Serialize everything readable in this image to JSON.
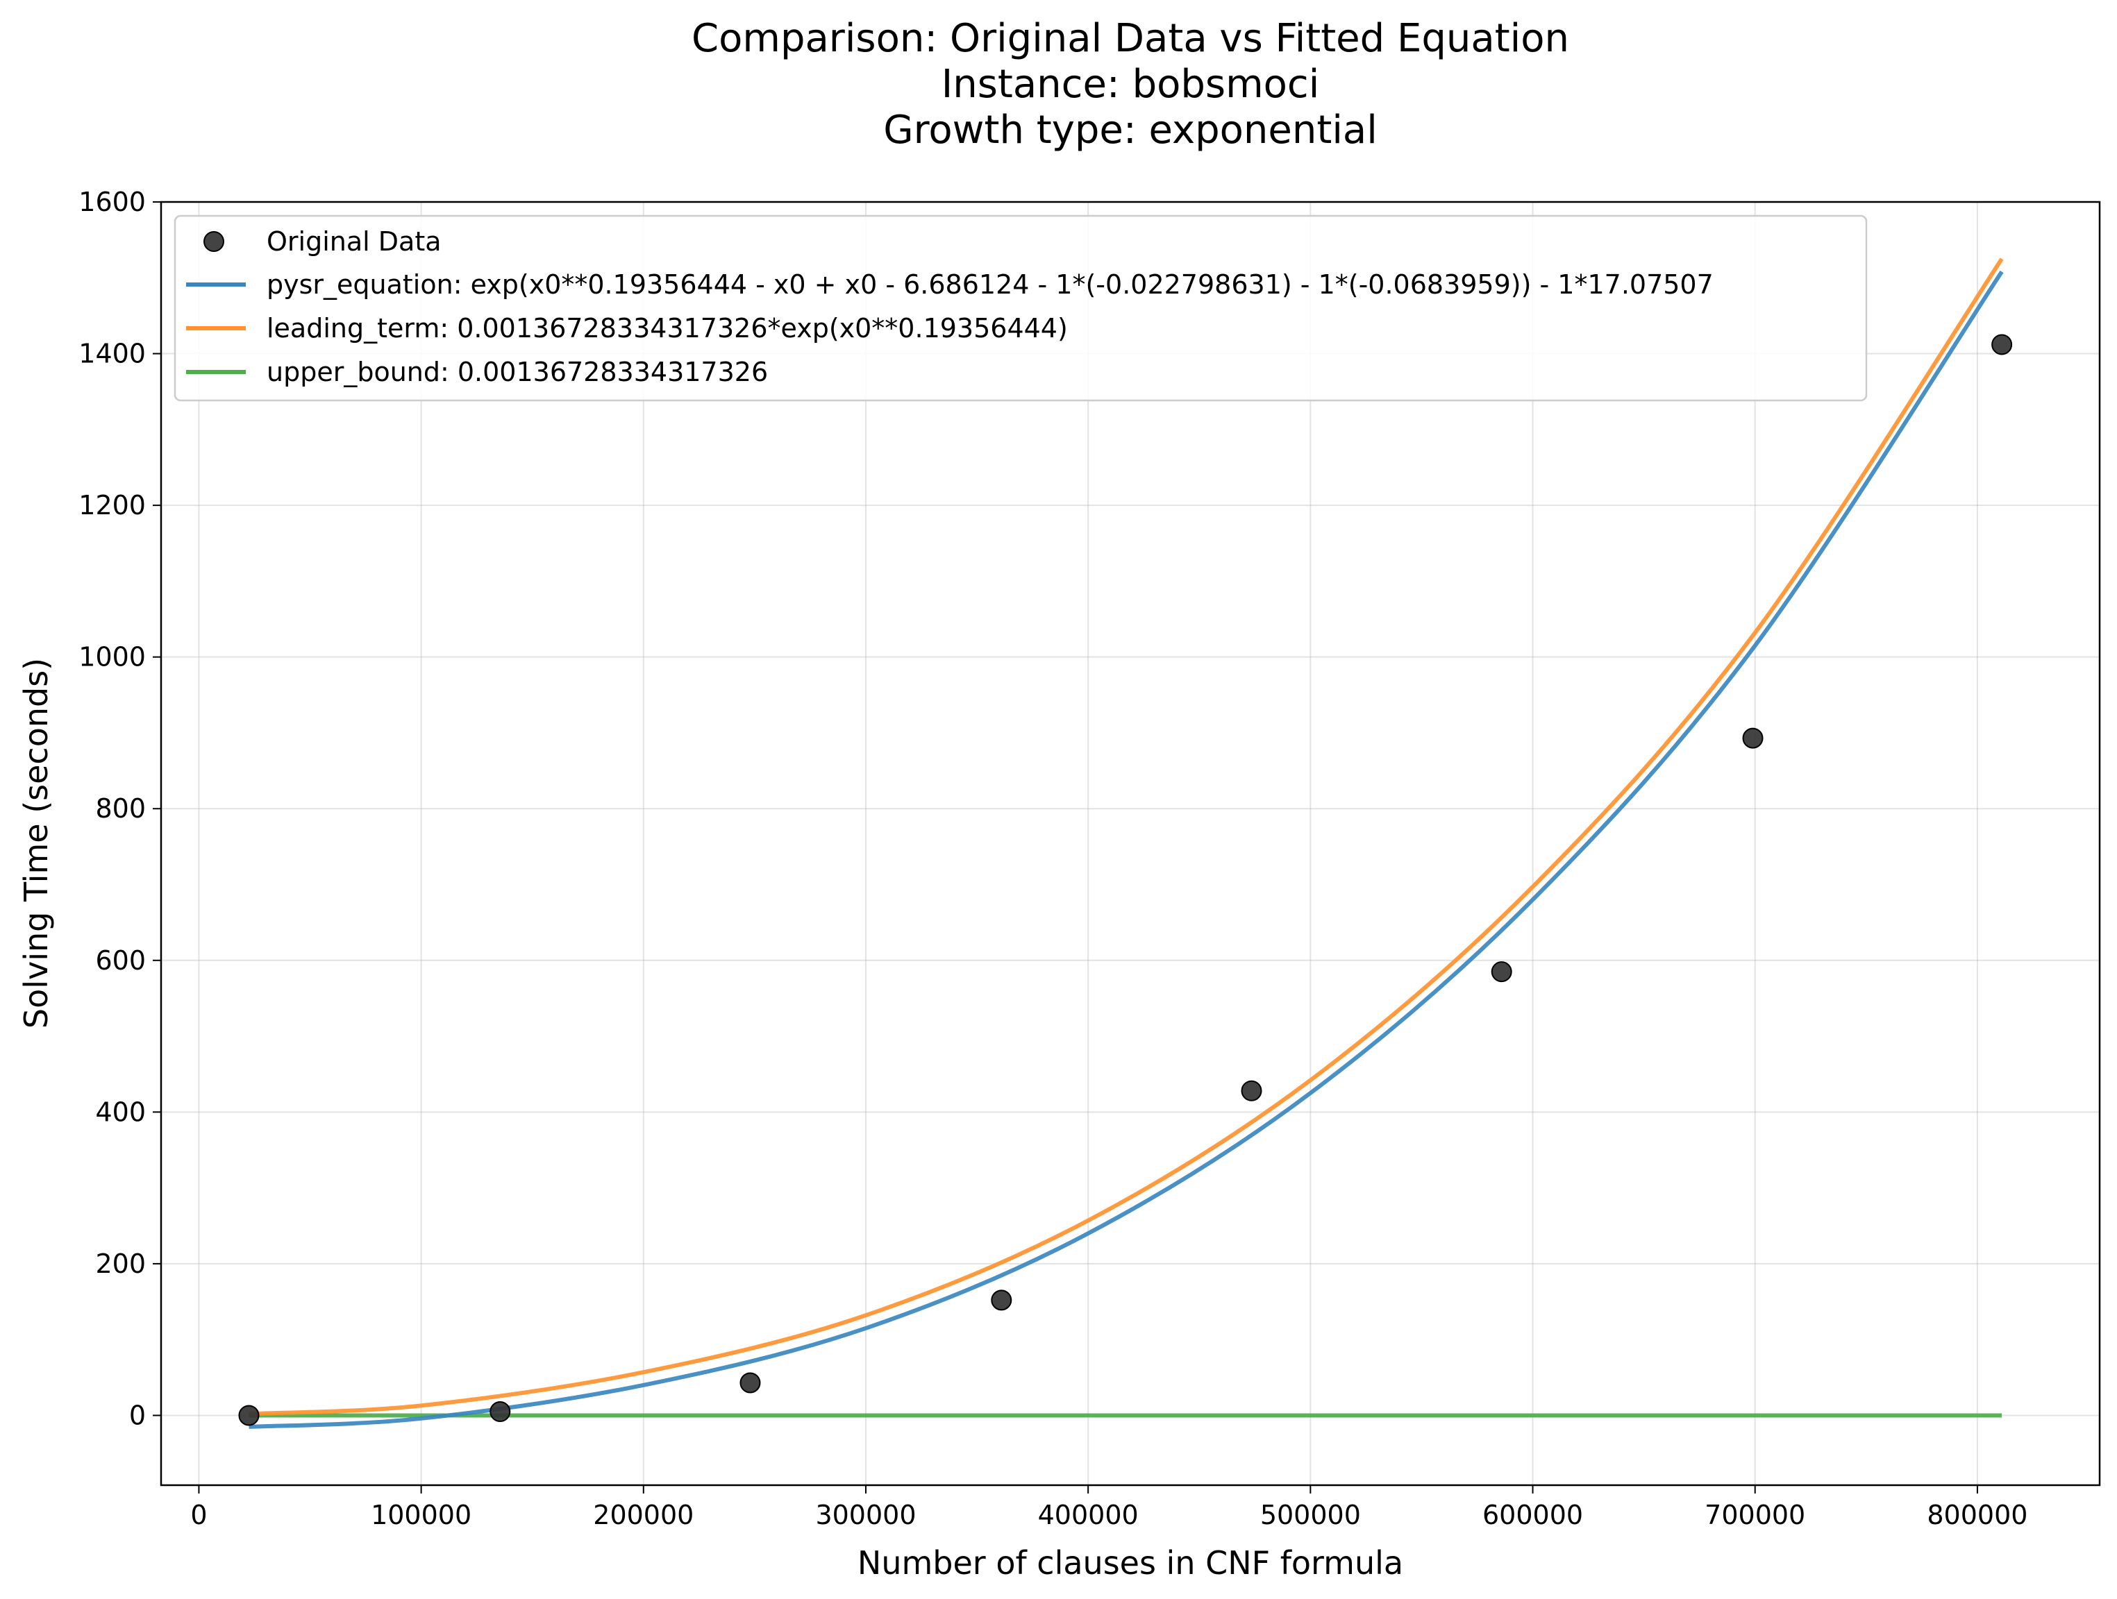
{
  "chart_data": {
    "type": "scatter",
    "title_lines": [
      "Comparison: Original Data vs Fitted Equation",
      "Instance: bobsmoci",
      "Growth type: exponential"
    ],
    "xlabel": "Number of clauses in CNF formula",
    "ylabel": "Solving Time (seconds)",
    "xlim": [
      -17000,
      855000
    ],
    "ylim": [
      -92,
      1600
    ],
    "xticks": [
      0,
      100000,
      200000,
      300000,
      400000,
      500000,
      600000,
      700000,
      800000
    ],
    "yticks": [
      0,
      200,
      400,
      600,
      800,
      1000,
      1200,
      1400,
      1600
    ],
    "grid": true,
    "legend_position": "upper-left",
    "series": [
      {
        "name": "Original Data",
        "kind": "scatter",
        "color": "#333333",
        "x": [
          22500,
          135500,
          248000,
          361000,
          473500,
          586000,
          699000,
          811000
        ],
        "y": [
          0,
          5,
          43,
          152,
          428,
          585,
          893,
          1412
        ]
      },
      {
        "name": "pysr_equation: exp(x0**0.19356444 - x0 + x0 - 6.686124 - 1*(-0.022798631) - 1*(-0.0683959)) - 1*17.07507",
        "kind": "line",
        "color": "#3a87c0",
        "x": [
          22500,
          100000,
          200000,
          300000,
          400000,
          500000,
          600000,
          700000,
          811000
        ],
        "y": [
          -15,
          -4,
          40,
          115,
          240,
          425,
          680,
          1015,
          1508
        ]
      },
      {
        "name": "leading_term: 0.00136728334317326*exp(x0**0.19356444)",
        "kind": "line",
        "color": "#ff922e",
        "x": [
          22500,
          100000,
          200000,
          300000,
          400000,
          500000,
          600000,
          700000,
          811000
        ],
        "y": [
          2,
          13,
          57,
          132,
          257,
          442,
          697,
          1032,
          1525
        ]
      },
      {
        "name": "upper_bound: 0.00136728334317326",
        "kind": "line",
        "color": "#4daf4a",
        "x": [
          22500,
          811000
        ],
        "y": [
          0.0014,
          0.0014
        ]
      }
    ]
  }
}
